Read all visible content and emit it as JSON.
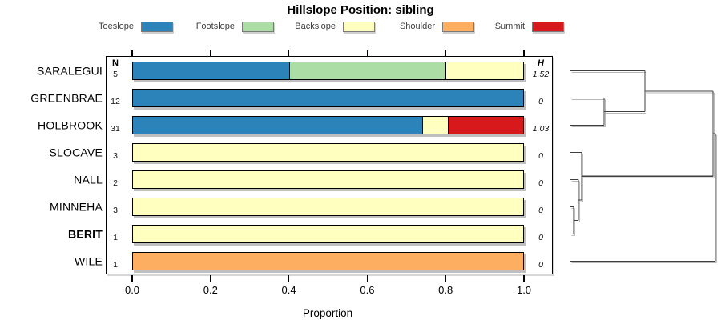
{
  "title": "Hillslope Position: sibling",
  "table": {
    "n_header": "N",
    "h_header": "H"
  },
  "x_axis": {
    "label": "Proportion",
    "tick_labels": [
      "0.0",
      "0.2",
      "0.4",
      "0.6",
      "0.8",
      "1.0"
    ]
  },
  "chart_data": {
    "type": "bar",
    "variant": "horizontal_stacked_proportion",
    "title": "Hillslope Position: sibling",
    "xlabel": "Proportion",
    "xlim": [
      0,
      1
    ],
    "xticks": [
      0,
      0.2,
      0.4,
      0.6,
      0.8,
      1.0
    ],
    "grid": false,
    "legend_position": "top",
    "categories": [
      "Toeslope",
      "Footslope",
      "Backslope",
      "Shoulder",
      "Summit"
    ],
    "colors": {
      "Toeslope": "#2B83BA",
      "Footslope": "#ABDDA4",
      "Backslope": "#FFFFBF",
      "Shoulder": "#FDAE61",
      "Summit": "#D7191C"
    },
    "rows": [
      {
        "label": "SARALEGUI",
        "n": "5",
        "h": "1.52",
        "emphasis": false,
        "segments": [
          [
            "Toeslope",
            0.4
          ],
          [
            "Footslope",
            0.4
          ],
          [
            "Backslope",
            0.2
          ]
        ]
      },
      {
        "label": "GREENBRAE",
        "n": "12",
        "h": "0",
        "emphasis": false,
        "segments": [
          [
            "Toeslope",
            1.0
          ]
        ]
      },
      {
        "label": "HOLBROOK",
        "n": "31",
        "h": "1.03",
        "emphasis": false,
        "segments": [
          [
            "Toeslope",
            0.742
          ],
          [
            "Backslope",
            0.065
          ],
          [
            "Summit",
            0.193
          ]
        ]
      },
      {
        "label": "SLOCAVE",
        "n": "3",
        "h": "0",
        "emphasis": false,
        "segments": [
          [
            "Backslope",
            1.0
          ]
        ]
      },
      {
        "label": "NALL",
        "n": "2",
        "h": "0",
        "emphasis": false,
        "segments": [
          [
            "Backslope",
            1.0
          ]
        ]
      },
      {
        "label": "MINNEHA",
        "n": "3",
        "h": "0",
        "emphasis": false,
        "segments": [
          [
            "Backslope",
            1.0
          ]
        ]
      },
      {
        "label": "BERIT",
        "n": "1",
        "h": "0",
        "emphasis": true,
        "segments": [
          [
            "Backslope",
            1.0
          ]
        ]
      },
      {
        "label": "WILE",
        "n": "1",
        "h": "0",
        "emphasis": false,
        "segments": [
          [
            "Shoulder",
            1.0
          ]
        ]
      }
    ],
    "dendrogram": {
      "side": "right",
      "leaf_order": [
        "SARALEGUI",
        "GREENBRAE",
        "HOLBROOK",
        "SLOCAVE",
        "NALL",
        "MINNEHA",
        "BERIT",
        "WILE"
      ],
      "segments_depth_row": [
        [
          0,
          0,
          0.514,
          0
        ],
        [
          0,
          1,
          0.232,
          1
        ],
        [
          0,
          2,
          0.232,
          2
        ],
        [
          0,
          3,
          0.077,
          3
        ],
        [
          0,
          4,
          0.055,
          4
        ],
        [
          0,
          5,
          0.022,
          5
        ],
        [
          0,
          6,
          0.022,
          6
        ],
        [
          0,
          7,
          1.0,
          7
        ],
        [
          0.232,
          1,
          0.232,
          2
        ],
        [
          0.232,
          1.5,
          0.514,
          1.5
        ],
        [
          0.514,
          0,
          0.514,
          1.5
        ],
        [
          0.514,
          0.75,
          0.983,
          0.75
        ],
        [
          0.022,
          5,
          0.022,
          6
        ],
        [
          0.022,
          5.5,
          0.055,
          5.5
        ],
        [
          0.055,
          4,
          0.055,
          5.5
        ],
        [
          0.055,
          4.75,
          0.077,
          4.75
        ],
        [
          0.077,
          3,
          0.077,
          4.75
        ],
        [
          0.077,
          3.875,
          0.983,
          3.875
        ],
        [
          0.983,
          0.75,
          0.983,
          3.875
        ],
        [
          0.983,
          2.3125,
          1.0,
          2.3125
        ],
        [
          1.0,
          2.3125,
          1.0,
          7
        ]
      ]
    }
  }
}
